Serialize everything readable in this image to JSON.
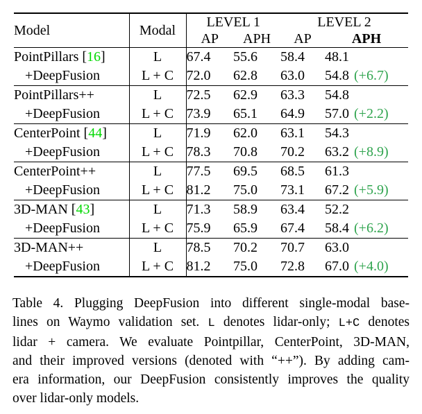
{
  "colors": {
    "citation_green": "#00d800",
    "delta_green": "#2fa44e"
  },
  "table": {
    "header": {
      "model": "Model",
      "modal": "Modal",
      "level1": "LEVEL 1",
      "level2": "LEVEL 2",
      "l1_ap": "AP",
      "l1_aph": "APH",
      "l2_ap": "AP",
      "l2_aph": "APH"
    },
    "rows": [
      {
        "model_pre": "PointPillars [",
        "cite": "16",
        "model_post": "]",
        "modal": "L",
        "l1_ap": "67.4",
        "l1_aph": "55.6",
        "l2_ap": "58.4",
        "l2_aph": "48.1",
        "delta": ""
      },
      {
        "model_pre": "+DeepFusion",
        "cite": "",
        "model_post": "",
        "modal": "L + C",
        "l1_ap": "72.0",
        "l1_aph": "62.8",
        "l2_ap": "63.0",
        "l2_aph": "54.8",
        "delta": "(+6.7)"
      },
      {
        "model_pre": "PointPillars++",
        "cite": "",
        "model_post": "",
        "modal": "L",
        "l1_ap": "72.5",
        "l1_aph": "62.9",
        "l2_ap": "63.3",
        "l2_aph": "54.8",
        "delta": ""
      },
      {
        "model_pre": "+DeepFusion",
        "cite": "",
        "model_post": "",
        "modal": "L + C",
        "l1_ap": "73.9",
        "l1_aph": "65.1",
        "l2_ap": "64.9",
        "l2_aph": "57.0",
        "delta": "(+2.2)"
      },
      {
        "model_pre": "CenterPoint [",
        "cite": "44",
        "model_post": "]",
        "modal": "L",
        "l1_ap": "71.9",
        "l1_aph": "62.0",
        "l2_ap": "63.1",
        "l2_aph": "54.3",
        "delta": ""
      },
      {
        "model_pre": "+DeepFusion",
        "cite": "",
        "model_post": "",
        "modal": "L + C",
        "l1_ap": "78.3",
        "l1_aph": "70.8",
        "l2_ap": "70.2",
        "l2_aph": "63.2",
        "delta": "(+8.9)"
      },
      {
        "model_pre": "CenterPoint++",
        "cite": "",
        "model_post": "",
        "modal": "L",
        "l1_ap": "77.5",
        "l1_aph": "69.5",
        "l2_ap": "68.5",
        "l2_aph": "61.3",
        "delta": ""
      },
      {
        "model_pre": "+DeepFusion",
        "cite": "",
        "model_post": "",
        "modal": "L + C",
        "l1_ap": "81.2",
        "l1_aph": "75.0",
        "l2_ap": "73.1",
        "l2_aph": "67.2",
        "delta": "(+5.9)"
      },
      {
        "model_pre": "3D-MAN [",
        "cite": "43",
        "model_post": "]",
        "modal": "L",
        "l1_ap": "71.3",
        "l1_aph": "58.9",
        "l2_ap": "63.4",
        "l2_aph": "52.2",
        "delta": ""
      },
      {
        "model_pre": "+DeepFusion",
        "cite": "",
        "model_post": "",
        "modal": "L + C",
        "l1_ap": "75.9",
        "l1_aph": "65.9",
        "l2_ap": "67.4",
        "l2_aph": "58.4",
        "delta": "(+6.2)"
      },
      {
        "model_pre": "3D-MAN++",
        "cite": "",
        "model_post": "",
        "modal": "L",
        "l1_ap": "78.5",
        "l1_aph": "70.2",
        "l2_ap": "70.7",
        "l2_aph": "63.0",
        "delta": ""
      },
      {
        "model_pre": "+DeepFusion",
        "cite": "",
        "model_post": "",
        "modal": "L + C",
        "l1_ap": "81.2",
        "l1_aph": "75.0",
        "l2_ap": "72.8",
        "l2_aph": "67.0",
        "delta": "(+4.0)"
      }
    ]
  },
  "caption": {
    "l1": "Table 4.  Plugging DeepFusion into different single-modal base-",
    "l2a": "lines on Waymo validation set. ",
    "l2b": "L",
    "l2c": " denotes lidar-only; ",
    "l2d": "L+C",
    "l2e": " denotes",
    "l3": "lidar + camera.  We evaluate Pointpillar, CenterPoint, 3D-MAN,",
    "l4": "and their improved versions (denoted with “++”). By adding cam-",
    "l5": "era information, our DeepFusion consistently improves the quality",
    "l6": "over lidar-only models."
  }
}
